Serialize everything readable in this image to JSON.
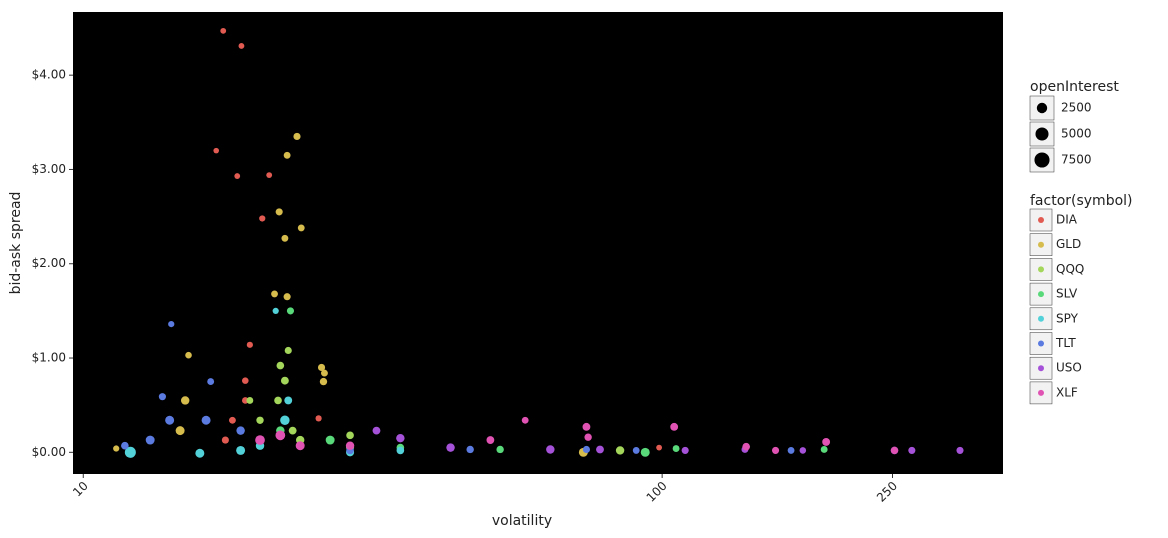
{
  "chart_data": {
    "type": "scatter",
    "x_label": "volatility",
    "y_label": "bid-ask spread",
    "x_log": true,
    "xlim": [
      9.6,
      388
    ],
    "xticks": [
      10,
      100,
      250
    ],
    "ylim": [
      -0.23,
      4.67
    ],
    "yticks": [
      {
        "value": 0,
        "label": "$0.00"
      },
      {
        "value": 1,
        "label": "$1.00"
      },
      {
        "value": 2,
        "label": "$2.00"
      },
      {
        "value": 3,
        "label": "$3.00"
      },
      {
        "value": 4,
        "label": "$4.00"
      }
    ],
    "background": "#000000",
    "size_legend": {
      "title": "openInterest",
      "values": [
        2500,
        5000,
        7500
      ]
    },
    "color_legend_title": "factor(symbol)",
    "series": [
      {
        "name": "DIA",
        "color": "#e15b52",
        "x": [
          17.45,
          18.76,
          16.97,
          18.45,
          20.95,
          20.38,
          19.4,
          19.05,
          18.1,
          17.6,
          25.5,
          98.8,
          19.05
        ],
        "y": [
          4.47,
          4.31,
          3.2,
          2.93,
          2.94,
          2.48,
          1.14,
          0.76,
          0.34,
          0.13,
          0.36,
          0.05,
          0.55
        ],
        "size": [
          200,
          200,
          150,
          200,
          200,
          300,
          300,
          400,
          500,
          600,
          300,
          200,
          400
        ]
      },
      {
        "name": "GLD",
        "color": "#d6bb4d",
        "x": [
          23.4,
          22.5,
          21.8,
          22.3,
          23.8,
          21.4,
          22.5,
          15.2,
          25.8,
          26.1,
          26.0,
          15.0,
          14.7,
          11.4,
          73.1
        ],
        "y": [
          3.35,
          3.15,
          2.55,
          2.27,
          2.38,
          1.68,
          1.65,
          1.03,
          0.9,
          0.84,
          0.75,
          0.55,
          0.23,
          0.04,
          0.0
        ],
        "size": [
          600,
          500,
          600,
          500,
          500,
          500,
          600,
          400,
          600,
          500,
          700,
          1200,
          1500,
          300,
          1500
        ]
      },
      {
        "name": "QQQ",
        "color": "#a3d65b",
        "x": [
          22.6,
          21.9,
          22.3,
          21.7,
          19.4,
          23.0,
          23.7,
          28.9,
          84.6,
          20.2
        ],
        "y": [
          1.08,
          0.92,
          0.76,
          0.55,
          0.55,
          0.23,
          0.13,
          0.18,
          0.02,
          0.34
        ],
        "size": [
          600,
          800,
          900,
          800,
          500,
          900,
          1200,
          800,
          1200,
          700
        ]
      },
      {
        "name": "SLV",
        "color": "#5ad97b",
        "x": [
          22.8,
          21.9,
          26.7,
          35.3,
          52.5,
          105.7,
          190.5,
          93.5,
          28.9
        ],
        "y": [
          1.5,
          0.23,
          0.13,
          0.05,
          0.03,
          0.04,
          0.03,
          0.0,
          0.05
        ],
        "size": [
          600,
          1200,
          1500,
          800,
          700,
          500,
          500,
          1500,
          1000
        ]
      },
      {
        "name": "SPY",
        "color": "#52d1d9",
        "x": [
          21.5,
          22.6,
          22.3,
          12.06,
          15.9,
          20.2,
          28.9,
          35.3,
          18.7
        ],
        "y": [
          1.5,
          0.55,
          0.34,
          0.0,
          -0.01,
          0.07,
          0.0,
          0.02,
          0.02
        ],
        "size": [
          300,
          900,
          1800,
          3000,
          1500,
          1200,
          1000,
          800,
          1500
        ]
      },
      {
        "name": "TLT",
        "color": "#5b7be1",
        "x": [
          14.19,
          13.7,
          16.6,
          14.1,
          13.05,
          16.3,
          18.7,
          11.8,
          28.9,
          46.6,
          74.0,
          90.2,
          167
        ],
        "y": [
          1.36,
          0.59,
          0.75,
          0.34,
          0.13,
          0.34,
          0.23,
          0.07,
          0.02,
          0.03,
          0.03,
          0.02,
          0.02
        ],
        "size": [
          300,
          600,
          500,
          1500,
          1500,
          1500,
          1200,
          800,
          800,
          700,
          600,
          500,
          500
        ]
      },
      {
        "name": "USO",
        "color": "#a552d9",
        "x": [
          32.1,
          35.3,
          43.1,
          64.1,
          78.1,
          109.6,
          139,
          252,
          270,
          327,
          175
        ],
        "y": [
          0.23,
          0.15,
          0.05,
          0.03,
          0.03,
          0.02,
          0.03,
          0.02,
          0.02,
          0.02,
          0.02
        ],
        "size": [
          900,
          1200,
          1200,
          1200,
          900,
          600,
          500,
          800,
          600,
          600,
          400
        ]
      },
      {
        "name": "XLF",
        "color": "#e053b3",
        "x": [
          58.0,
          74.0,
          74.5,
          104.9,
          139.7,
          157,
          192,
          20.2,
          21.9,
          23.7,
          28.9,
          50.5,
          252
        ],
        "y": [
          0.34,
          0.27,
          0.16,
          0.27,
          0.06,
          0.02,
          0.11,
          0.13,
          0.18,
          0.07,
          0.07,
          0.13,
          0.02
        ],
        "size": [
          500,
          900,
          700,
          900,
          800,
          600,
          900,
          2000,
          2000,
          1500,
          1200,
          900,
          700
        ]
      }
    ]
  }
}
